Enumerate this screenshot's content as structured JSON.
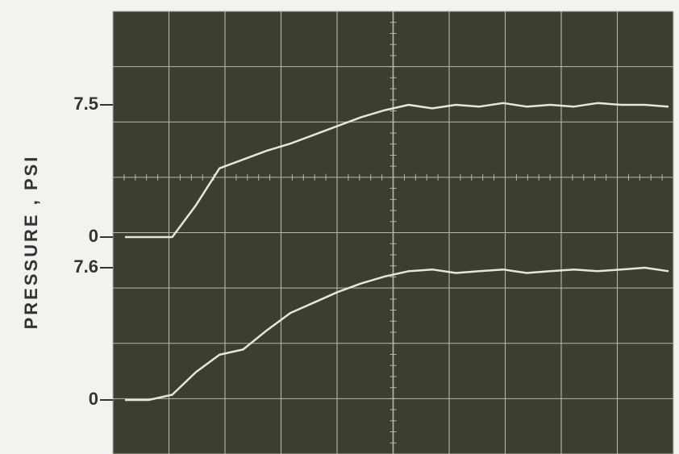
{
  "axis_label": "PRESSURE , PSI",
  "chart_data": [
    {
      "type": "line",
      "color": "#e6e6dc",
      "categories": [
        null,
        null,
        null,
        null,
        null,
        null,
        null,
        null,
        null,
        null,
        null,
        null,
        null,
        null,
        null,
        null,
        null,
        null,
        null,
        null,
        null,
        null,
        null,
        null
      ],
      "values": [
        0,
        0,
        0,
        1.8,
        3.9,
        4.4,
        4.9,
        5.3,
        5.8,
        6.3,
        6.8,
        7.2,
        7.5,
        7.3,
        7.5,
        7.4,
        7.6,
        7.4,
        7.5,
        7.4,
        7.6,
        7.5,
        7.5,
        7.4
      ],
      "ylim": [
        0,
        7.5
      ],
      "yticks": [
        0,
        7.5
      ]
    },
    {
      "type": "line",
      "color": "#e6e6dc",
      "categories": [
        null,
        null,
        null,
        null,
        null,
        null,
        null,
        null,
        null,
        null,
        null,
        null,
        null,
        null,
        null,
        null,
        null,
        null,
        null,
        null,
        null,
        null,
        null,
        null
      ],
      "values": [
        0,
        0,
        0.3,
        1.6,
        2.6,
        2.9,
        4.0,
        5.0,
        5.6,
        6.2,
        6.7,
        7.1,
        7.4,
        7.5,
        7.3,
        7.4,
        7.5,
        7.3,
        7.4,
        7.5,
        7.4,
        7.5,
        7.6,
        7.4
      ],
      "ylim": [
        0,
        7.6
      ],
      "yticks": [
        0,
        7.6
      ]
    }
  ]
}
